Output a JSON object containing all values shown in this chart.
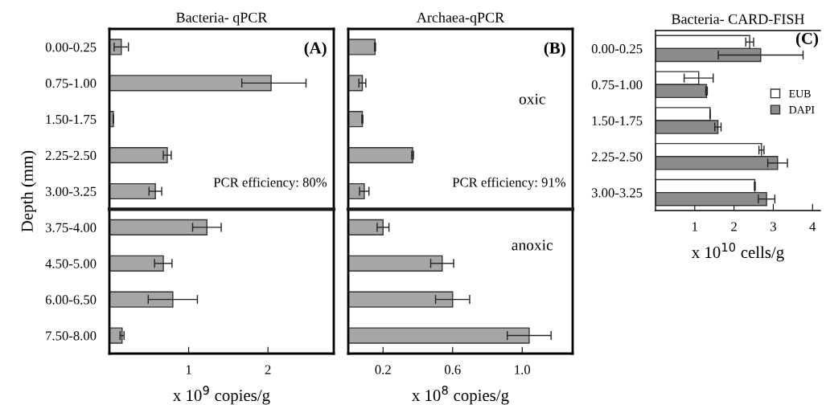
{
  "chart_data": [
    {
      "type": "bar",
      "orientation": "horizontal",
      "title": "Bacteria- qPCR",
      "xlabel": "x 10$^{9}$ copies/g",
      "ylabel": "Depth (mm)",
      "categories": [
        "0.00-0.25",
        "0.75-1.00",
        "1.50-1.75",
        "2.25-2.50",
        "3.00-3.25",
        "3.75-4.00",
        "4.50-5.00",
        "6.00-6.50",
        "7.50-8.00"
      ],
      "series": [
        {
          "color": "#a6a6a6",
          "values": [
            0.15,
            2.04,
            0.05,
            0.73,
            0.58,
            1.23,
            0.68,
            0.8,
            0.16
          ],
          "errors": [
            0.09,
            [
              1.67,
              2.48
            ],
            null,
            0.05,
            0.08,
            0.18,
            0.11,
            0.31,
            0.025
          ]
        }
      ],
      "xlim": [
        0,
        2.83
      ],
      "xticks": [
        1,
        2
      ],
      "annotations": [
        "(A)",
        "PCR efficiency: 80%"
      ]
    },
    {
      "type": "bar",
      "orientation": "horizontal",
      "title": "Archaea-qPCR",
      "xlabel": "x 10$^{8}$ copies/g",
      "categories": [
        null,
        null,
        null,
        null,
        null,
        null,
        null,
        null,
        null
      ],
      "series": [
        {
          "color": "#a6a6a6",
          "values": [
            0.154,
            0.081,
            0.081,
            0.37,
            0.092,
            0.2,
            0.54,
            0.6,
            1.04
          ],
          "errors": [
            0.003,
            0.02,
            0.003,
            0.005,
            0.027,
            0.034,
            0.066,
            0.098,
            0.126
          ]
        }
      ],
      "xlim": [
        0,
        1.29
      ],
      "xticks": [
        0.2,
        0.6,
        {
          "value": 1.0,
          "label": "1.0"
        }
      ],
      "annotations": [
        "(B)",
        "oxic",
        "anoxic",
        "PCR efficiency: 91%"
      ]
    },
    {
      "type": "bar",
      "orientation": "horizontal",
      "title": "Bacteria- CARD-FISH",
      "xlabel": "x 10$^{10}$ cells/g",
      "categories": [
        "0.00-0.25",
        "0.75-1.00",
        "1.50-1.75",
        "2.25-2.50",
        "3.00-3.25"
      ],
      "series": [
        {
          "name": "EUB",
          "color": "#ffffff",
          "values": [
            2.4,
            1.1,
            1.39,
            2.7,
            2.53
          ],
          "errors": [
            0.1,
            0.37,
            null,
            0.065,
            0.01
          ]
        },
        {
          "name": "DAPI",
          "color": "#8c8c8c",
          "values": [
            2.68,
            1.3,
            1.59,
            3.11,
            2.83
          ],
          "errors": [
            1.08,
            0.02,
            0.08,
            0.25,
            0.21
          ]
        }
      ],
      "xlim": [
        0,
        4.2
      ],
      "xticks": [
        1,
        2,
        3,
        4
      ],
      "legend": "right",
      "annotations": [
        "(C)"
      ]
    }
  ]
}
